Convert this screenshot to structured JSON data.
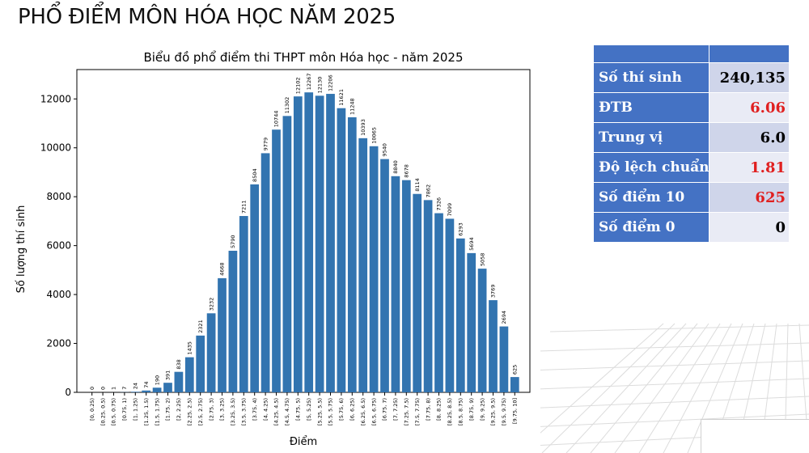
{
  "slide": {
    "title": "PHỔ ĐIỂM MÔN HÓA HỌC NĂM 2025"
  },
  "chart_data": {
    "type": "bar",
    "title": "Biểu đồ phổ điểm thi THPT môn Hóa học - năm 2025",
    "xlabel": "Điểm",
    "ylabel": "Số lượng thí sinh",
    "ylim": [
      0,
      13200
    ],
    "yticks": [
      0,
      2000,
      4000,
      6000,
      8000,
      10000,
      12000
    ],
    "grid": false,
    "bar_color": "#3274b0",
    "categories": [
      "[0, 0.25)",
      "[0.25, 0.5)",
      "[0.5, 0.75)",
      "[0.75, 1)",
      "[1, 1.25)",
      "[1.25, 1.5)",
      "[1.5, 1.75)",
      "[1.75, 2)",
      "[2, 2.25)",
      "[2.25, 2.5)",
      "[2.5, 2.75)",
      "[2.75, 3)",
      "[3, 3.25)",
      "[3.25, 3.5)",
      "[3.5, 3.75)",
      "[3.75, 4)",
      "[4, 4.25)",
      "[4.25, 4.5)",
      "[4.5, 4.75)",
      "[4.75, 5)",
      "[5, 5.25)",
      "[5.25, 5.5)",
      "[5.5, 5.75)",
      "[5.75, 6)",
      "[6, 6.25)",
      "[6.25, 6.5)",
      "[6.5, 6.75)",
      "[6.75, 7)",
      "[7, 7.25)",
      "[7.25, 7.5)",
      "[7.5, 7.75)",
      "[7.75, 8)",
      "[8, 8.25)",
      "[8.25, 8.5)",
      "[8.5, 8.75)",
      "[8.75, 9)",
      "[9, 9.25)",
      "[9.25, 9.5)",
      "[9.5, 9.75)",
      "[9.75, 10]"
    ],
    "values": [
      0,
      0,
      1,
      7,
      24,
      74,
      190,
      391,
      838,
      1435,
      2321,
      3232,
      4668,
      5790,
      7211,
      8504,
      9779,
      10744,
      11302,
      12102,
      12267,
      12130,
      12206,
      11621,
      11248,
      10393,
      10065,
      9540,
      8840,
      8678,
      8114,
      7862,
      7326,
      7099,
      6293,
      5694,
      5058,
      3769,
      2694,
      625
    ]
  },
  "stats": {
    "rows": [
      {
        "label": "Số thí sinh",
        "value": "240,135",
        "value_color": "#000000"
      },
      {
        "label": "ĐTB",
        "value": "6.06",
        "value_color": "#e02020"
      },
      {
        "label": "Trung vị",
        "value": "6.0",
        "value_color": "#000000"
      },
      {
        "label": "Độ lệch chuẩn",
        "value": "1.81",
        "value_color": "#e02020"
      },
      {
        "label": "Số điểm 10",
        "value": "625",
        "value_color": "#e02020"
      },
      {
        "label": "Số điểm 0",
        "value": "0",
        "value_color": "#000000"
      }
    ]
  }
}
